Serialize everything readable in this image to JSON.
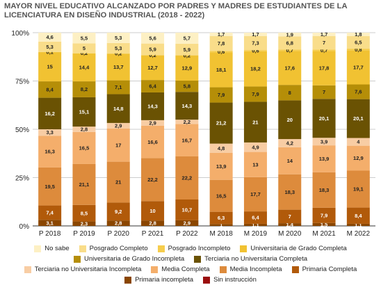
{
  "chart_data": {
    "type": "bar",
    "stacked": true,
    "normalized": true,
    "title": [
      "MAYOR NIVEL EDUCATIVO ALCANZADO POR PADRES Y MADRES DE ESTUDIANTES DE LA",
      "LICENCIATURA EN DISEÑO INDUSTRIAL (2018 - 2022)"
    ],
    "categories": [
      "P 2018",
      "P 2019",
      "P 2020",
      "P 2021",
      "P 2022",
      "M 2018",
      "M 2019",
      "M 2020",
      "M 2021",
      "M 2022"
    ],
    "y_ticks": [
      "0%",
      "25%",
      "50%",
      "75%",
      "100%"
    ],
    "ylim": [
      0,
      100
    ],
    "grid": true,
    "legend_position": "bottom",
    "series": [
      {
        "name": "Sin instrucción",
        "color": "#9b0d0d",
        "values": [
          0,
          0,
          0,
          0,
          0,
          0,
          0,
          0,
          0,
          0
        ],
        "labels": [
          "",
          "",
          "",
          "",
          "",
          "",
          "",
          "",
          "",
          ""
        ]
      },
      {
        "name": "Primaria incompleta",
        "color": "#8a4600",
        "values": [
          3.1,
          2.3,
          2.8,
          2.8,
          2.9,
          1,
          1.1,
          1.4,
          1.5,
          1.1
        ],
        "labels": [
          "3,1",
          "2,3",
          "2,8",
          "2,8",
          "2,9",
          "1",
          "1,1",
          "1,4",
          "1,5",
          "1,1"
        ]
      },
      {
        "name": "Primaria Completa",
        "color": "#b15a0a",
        "values": [
          7.4,
          8.5,
          9.2,
          10,
          10.7,
          6.3,
          6.4,
          7,
          7.9,
          8.4
        ],
        "labels": [
          "7,4",
          "8,5",
          "9,2",
          "10",
          "10,7",
          "6,3",
          "6,4",
          "7",
          "7,9",
          "8,4"
        ]
      },
      {
        "name": "Media Incompleta",
        "color": "#dd8b3c",
        "values": [
          19.5,
          21.1,
          21,
          22.2,
          22.2,
          16.5,
          17.7,
          18.3,
          18.3,
          19.1
        ],
        "labels": [
          "19,5",
          "21,1",
          "21",
          "22,2",
          "22,2",
          "16,5",
          "17,7",
          "18,3",
          "18,3",
          "19,1"
        ]
      },
      {
        "name": "Media Completa",
        "color": "#f4ae6b",
        "values": [
          16.3,
          16.5,
          17,
          16.6,
          16.7,
          13.9,
          13,
          14,
          13.9,
          12.9
        ],
        "labels": [
          "16,3",
          "16,5",
          "17",
          "16,6",
          "16,7",
          "13,9",
          "13",
          "14",
          "13,9",
          "12,9"
        ]
      },
      {
        "name": "Terciaria no Universitaria Incompleta",
        "color": "#f8cda4",
        "values": [
          3.3,
          2.8,
          2.9,
          2.9,
          2.2,
          4.8,
          4.9,
          4.2,
          3.9,
          4
        ],
        "labels": [
          "3,3",
          "2,8",
          "2,9",
          "2,9",
          "2,2",
          "4,8",
          "4,9",
          "4,2",
          "3,9",
          "4"
        ]
      },
      {
        "name": "Terciaria no Universitaria Completa",
        "color": "#6a5203",
        "values": [
          16.2,
          15.1,
          14.8,
          14.3,
          14.3,
          21.2,
          21,
          20,
          20.1,
          20.1
        ],
        "labels": [
          "16,2",
          "15,1",
          "14,8",
          "14,3",
          "14,3",
          "21,2",
          "21",
          "20",
          "20,1",
          "20,1"
        ]
      },
      {
        "name": "Universitaria de Grado Incompleta",
        "color": "#b58e08",
        "values": [
          8.4,
          8.2,
          7.1,
          6.4,
          5.8,
          7.9,
          7.9,
          8,
          7,
          7.6
        ],
        "labels": [
          "8,4",
          "8,2",
          "7,1",
          "6,4",
          "5,8",
          "7,9",
          "7,9",
          "8",
          "7",
          "7,6"
        ]
      },
      {
        "name": "Universitaria de Grado Completa",
        "color": "#f1c232",
        "values": [
          15,
          14.4,
          13.7,
          12.7,
          12.9,
          18.1,
          18.2,
          17.6,
          17.8,
          17.7
        ],
        "labels": [
          "15",
          "14,4",
          "13,7",
          "12,7",
          "12,9",
          "18,1",
          "18,2",
          "17,6",
          "17,8",
          "17,7"
        ]
      },
      {
        "name": "Posgrado Incompleto",
        "color": "#f6cd4d",
        "values": [
          0.1,
          0.2,
          0.2,
          0.2,
          0.2,
          0.6,
          0.6,
          0.7,
          0.7,
          0.8
        ],
        "labels": [
          "0,1",
          "0,2",
          "0,2",
          "0,2",
          "0,2",
          "0,6",
          "0,6",
          "0,7",
          "0,7",
          "0,8"
        ]
      },
      {
        "name": "Posgrado Completo",
        "color": "#f9dd8a",
        "values": [
          5.3,
          5,
          5.3,
          5.9,
          5.9,
          7.8,
          7.3,
          6.8,
          7,
          6.5
        ],
        "labels": [
          "5,3",
          "5",
          "5,3",
          "5,9",
          "5,9",
          "7,8",
          "7,3",
          "6,8",
          "7",
          "6,5"
        ]
      },
      {
        "name": "No sabe",
        "color": "#fdf0c4",
        "values": [
          4.6,
          5.5,
          5.3,
          5.6,
          5.7,
          1.7,
          1.7,
          1.9,
          1.7,
          1.8
        ],
        "labels": [
          "4,6",
          "5,5",
          "5,3",
          "5,6",
          "5,7",
          "1,7",
          "1,7",
          "1,9",
          "1,7",
          "1,8"
        ]
      }
    ],
    "legend_rows": [
      [
        "No sabe",
        "Posgrado Completo",
        "Posgrado Incompleto",
        "Universitaria de Grado Completa"
      ],
      [
        "Universitaria de Grado Incompleta",
        "Terciaria no Universitaria Completa"
      ],
      [
        "Terciaria no Universitaria Incompleta",
        "Media Completa",
        "Media Incompleta",
        "Primaria Completa"
      ],
      [
        "Primaria incompleta",
        "Sin instrucción"
      ]
    ]
  }
}
